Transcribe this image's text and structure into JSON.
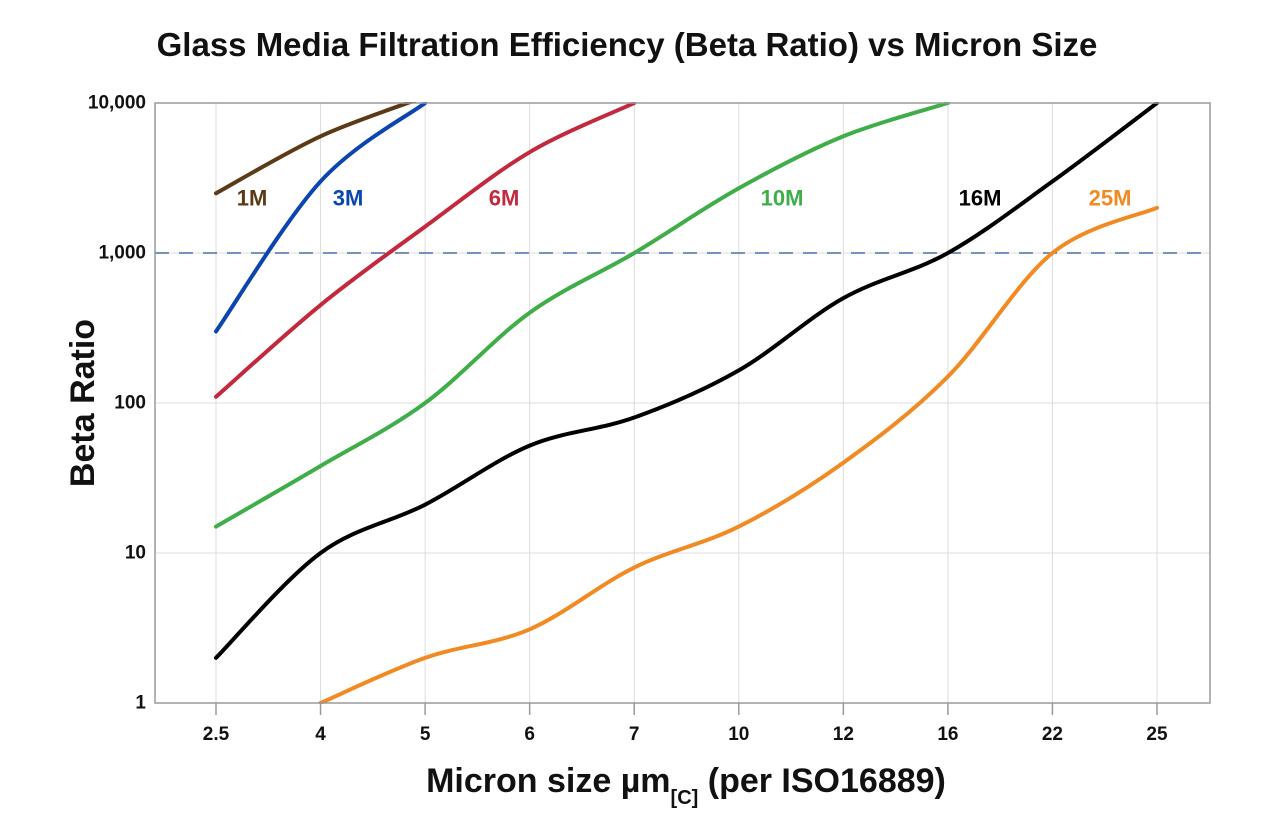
{
  "chart_data": {
    "type": "line",
    "title": "Glass Media Filtration Efficiency (Beta Ratio) vs Micron Size",
    "xlabel": {
      "main": "Micron size µm",
      "subscript": "[C]",
      "suffix": " (per ISO16889)"
    },
    "ylabel": "Beta Ratio",
    "yscale": "log",
    "ylim": [
      1,
      10000
    ],
    "yticks": [
      1,
      10,
      100,
      1000,
      10000
    ],
    "ytick_labels": [
      "1",
      "10",
      "100",
      "1,000",
      "10,000"
    ],
    "categories": [
      "2.5",
      "4",
      "5",
      "6",
      "7",
      "10",
      "12",
      "16",
      "22",
      "25"
    ],
    "grid": true,
    "reference_line": {
      "y": 1000,
      "style": "dashed",
      "color": "#4a6fa5"
    },
    "series": [
      {
        "name": "1M",
        "color": "#5c3a17",
        "values": [
          2500,
          6000,
          11000,
          null,
          null,
          null,
          null,
          null,
          null,
          null
        ]
      },
      {
        "name": "3M",
        "color": "#0a45b0",
        "values": [
          300,
          3000,
          10000,
          null,
          null,
          null,
          null,
          null,
          null,
          null
        ]
      },
      {
        "name": "6M",
        "color": "#c3283d",
        "values": [
          110,
          450,
          1500,
          4700,
          10000,
          null,
          null,
          null,
          null,
          null
        ]
      },
      {
        "name": "10M",
        "color": "#3fae49",
        "values": [
          15,
          38,
          100,
          400,
          1000,
          2700,
          6000,
          10000,
          null,
          null
        ]
      },
      {
        "name": "16M",
        "color": "#000000",
        "values": [
          2,
          10,
          21,
          52,
          80,
          165,
          500,
          1000,
          3000,
          10000
        ]
      },
      {
        "name": "25M",
        "color": "#f28a24",
        "values": [
          null,
          1,
          2,
          3.1,
          8,
          15,
          40,
          150,
          1000,
          2000
        ]
      }
    ]
  }
}
